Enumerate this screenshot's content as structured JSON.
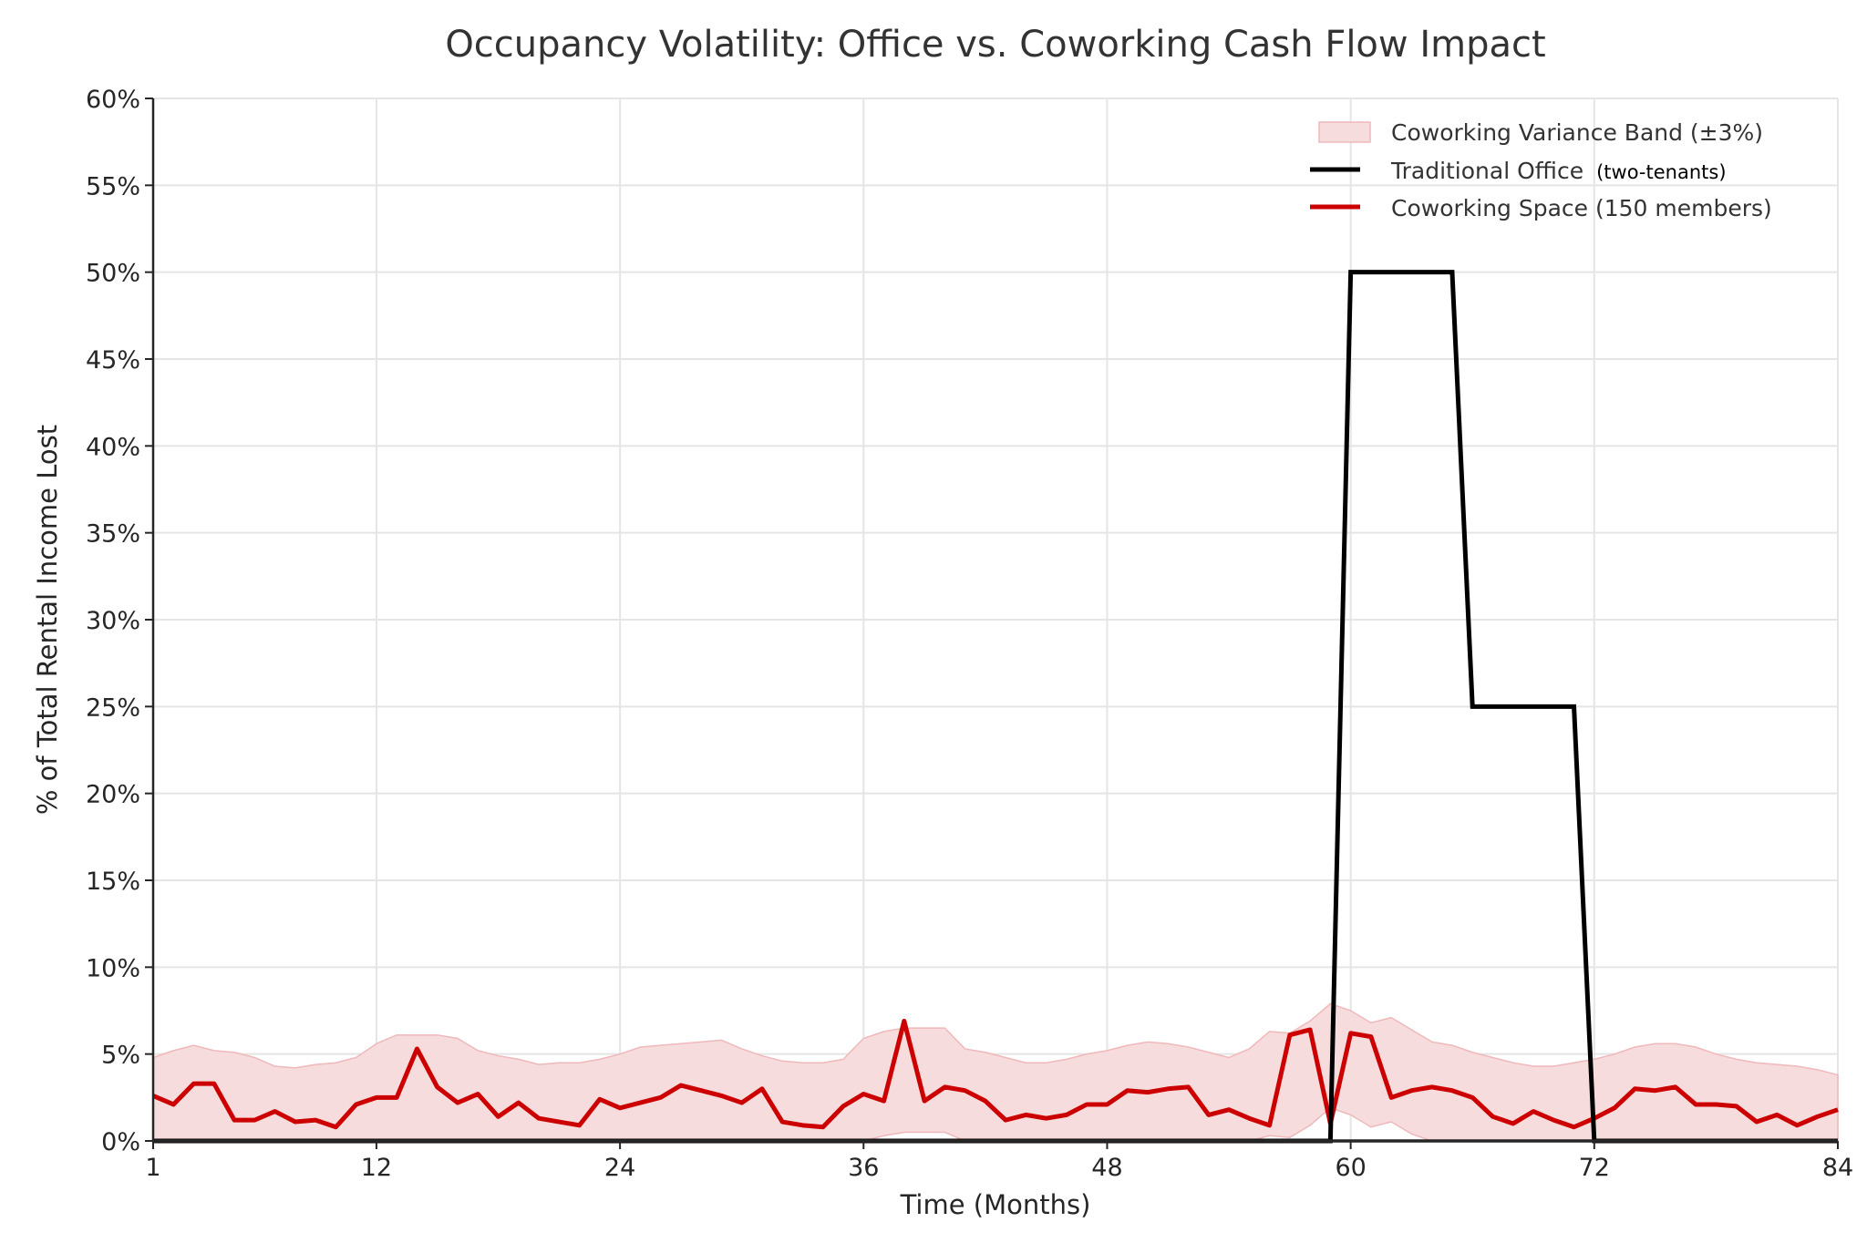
{
  "chart_data": {
    "type": "line",
    "title": "Occupancy Volatility: Office vs. Coworking Cash Flow Impact",
    "xlabel": "Time (Months)",
    "ylabel": "% of Total Rental Income Lost",
    "xlim": [
      1,
      84
    ],
    "ylim": [
      0,
      60
    ],
    "xticks": [
      1,
      12,
      24,
      36,
      48,
      60,
      72,
      84
    ],
    "xtick_labels": [
      "1",
      "12",
      "24",
      "36",
      "48",
      "60",
      "72",
      "84"
    ],
    "yticks": [
      0,
      5,
      10,
      15,
      20,
      25,
      30,
      35,
      40,
      45,
      50,
      55,
      60
    ],
    "ytick_labels": [
      "0%",
      "5%",
      "10%",
      "15%",
      "20%",
      "25%",
      "30%",
      "35%",
      "40%",
      "45%",
      "50%",
      "55%",
      "60%"
    ],
    "grid": true,
    "legend_position": "top-right",
    "legend": {
      "band": "Coworking Variance Band (±3%)",
      "office": "Traditional Office",
      "office_note": "(two-tenants)",
      "coworking": "Coworking Space (150 members)"
    },
    "colors": {
      "office": "#000000",
      "coworking": "#cc0000",
      "band": "#f7dcdd",
      "band_edge": "#efb8ba",
      "grid": "#e5e5e5"
    },
    "x": [
      1,
      2,
      3,
      4,
      5,
      6,
      7,
      8,
      9,
      10,
      11,
      12,
      13,
      14,
      15,
      16,
      17,
      18,
      19,
      20,
      21,
      22,
      23,
      24,
      25,
      26,
      27,
      28,
      29,
      30,
      31,
      32,
      33,
      34,
      35,
      36,
      37,
      38,
      39,
      40,
      41,
      42,
      43,
      44,
      45,
      46,
      47,
      48,
      49,
      50,
      51,
      52,
      53,
      54,
      55,
      56,
      57,
      58,
      59,
      60,
      61,
      62,
      63,
      64,
      65,
      66,
      67,
      68,
      69,
      70,
      71,
      72,
      73,
      74,
      75,
      76,
      77,
      78,
      79,
      80,
      81,
      82,
      83,
      84
    ],
    "series": [
      {
        "name": "Traditional Office (two-tenants)",
        "values": [
          0,
          0,
          0,
          0,
          0,
          0,
          0,
          0,
          0,
          0,
          0,
          0,
          0,
          0,
          0,
          0,
          0,
          0,
          0,
          0,
          0,
          0,
          0,
          0,
          0,
          0,
          0,
          0,
          0,
          0,
          0,
          0,
          0,
          0,
          0,
          0,
          0,
          0,
          0,
          0,
          0,
          0,
          0,
          0,
          0,
          0,
          0,
          0,
          0,
          0,
          0,
          0,
          0,
          0,
          0,
          0,
          0,
          0,
          0,
          50,
          50,
          50,
          50,
          50,
          50,
          25,
          25,
          25,
          25,
          25,
          25,
          0,
          0,
          0,
          0,
          0,
          0,
          0,
          0,
          0,
          0,
          0,
          0,
          0
        ]
      },
      {
        "name": "Coworking Space (150 members)",
        "values": [
          2.6,
          2.1,
          3.3,
          3.3,
          1.2,
          1.2,
          1.7,
          1.1,
          1.2,
          0.8,
          2.1,
          2.5,
          2.5,
          5.3,
          3.1,
          2.2,
          2.7,
          1.4,
          2.2,
          1.3,
          1.1,
          0.9,
          2.4,
          1.9,
          2.2,
          2.5,
          3.2,
          2.9,
          2.6,
          2.2,
          3.0,
          1.1,
          0.9,
          0.8,
          2.0,
          2.7,
          2.3,
          6.9,
          2.3,
          3.1,
          2.9,
          2.3,
          1.2,
          1.5,
          1.3,
          1.5,
          2.1,
          2.1,
          2.9,
          2.8,
          3.0,
          3.1,
          1.5,
          1.8,
          1.3,
          0.9,
          6.1,
          6.4,
          1.0,
          6.2,
          6.0,
          2.5,
          2.9,
          3.1,
          2.9,
          2.5,
          1.4,
          1.0,
          1.7,
          1.2,
          0.8,
          1.3,
          1.9,
          3.0,
          2.9,
          3.1,
          2.1,
          2.1,
          2.0,
          1.1,
          1.5,
          0.9,
          1.4,
          1.8
        ]
      }
    ],
    "band": {
      "name": "Coworking Variance Band (±3%)",
      "halfwidth": 3,
      "center": [
        1.8,
        2.2,
        2.5,
        2.2,
        2.1,
        1.8,
        1.3,
        1.2,
        1.4,
        1.5,
        1.8,
        2.6,
        3.1,
        3.1,
        3.1,
        2.9,
        2.2,
        1.9,
        1.7,
        1.4,
        1.5,
        1.5,
        1.7,
        2.0,
        2.4,
        2.5,
        2.6,
        2.7,
        2.8,
        2.3,
        1.9,
        1.6,
        1.5,
        1.5,
        1.7,
        2.9,
        3.3,
        3.5,
        3.5,
        3.5,
        2.3,
        2.1,
        1.8,
        1.5,
        1.5,
        1.7,
        2.0,
        2.2,
        2.5,
        2.7,
        2.6,
        2.4,
        2.1,
        1.8,
        2.3,
        3.3,
        3.2,
        3.9,
        4.9,
        4.5,
        3.8,
        4.1,
        3.4,
        2.7,
        2.5,
        2.1,
        1.8,
        1.5,
        1.3,
        1.3,
        1.5,
        1.7,
        2.0,
        2.4,
        2.6,
        2.6,
        2.4,
        2.0,
        1.7,
        1.5,
        1.4,
        1.3,
        1.1,
        0.8
      ]
    }
  }
}
